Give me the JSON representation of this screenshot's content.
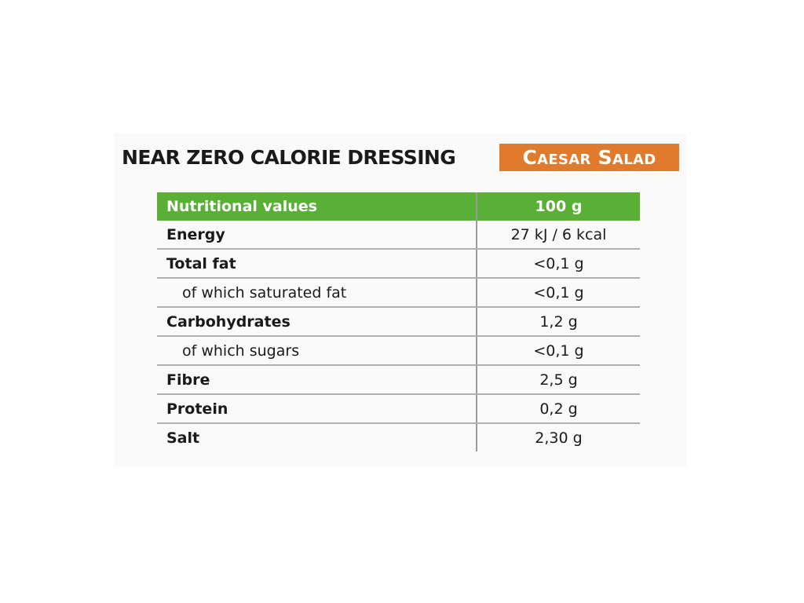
{
  "header": {
    "title": "NEAR ZERO CALORIE DRESSING",
    "badge": "Caesar Salad"
  },
  "table": {
    "columns": [
      "Nutritional values",
      "100 g"
    ],
    "rows": [
      [
        "Energy",
        "27 kJ / 6 kcal"
      ],
      [
        "Total fat",
        "<0,1 g"
      ],
      [
        "of which saturated fat",
        "<0,1 g"
      ],
      [
        "Carbohydrates",
        "1,2 g"
      ],
      [
        "of which sugars",
        "<0,1 g"
      ],
      [
        "Fibre",
        "2,5 g"
      ],
      [
        "Protein",
        "0,2 g"
      ],
      [
        "Salt",
        "2,30 g"
      ]
    ]
  }
}
